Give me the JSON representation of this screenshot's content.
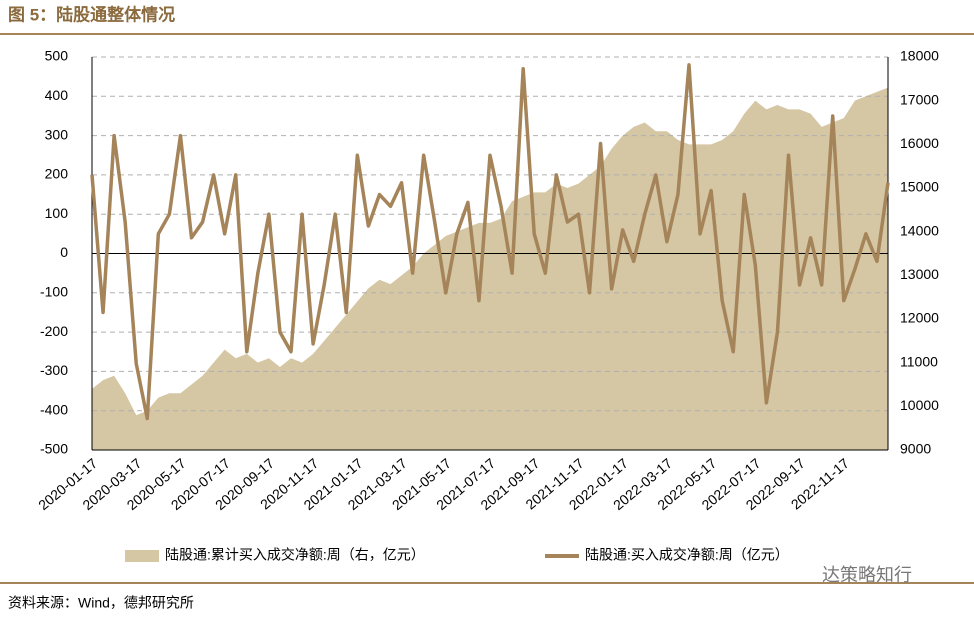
{
  "chart_data": {
    "type": "combo",
    "title": "图 5：陆股通整体情况",
    "source": "资料来源：Wind，德邦研究所",
    "watermark": "达策略知行",
    "categories": [
      "2020-01-17",
      null,
      null,
      null,
      "2020-03-17",
      null,
      null,
      null,
      "2020-05-17",
      null,
      null,
      null,
      "2020-07-17",
      null,
      null,
      null,
      "2020-09-17",
      null,
      null,
      null,
      "2020-11-17",
      null,
      null,
      null,
      "2021-01-17",
      null,
      null,
      null,
      "2021-03-17",
      null,
      null,
      null,
      "2021-05-17",
      null,
      null,
      null,
      "2021-07-17",
      null,
      null,
      null,
      "2021-09-17",
      null,
      null,
      null,
      "2021-11-17",
      null,
      null,
      null,
      "2022-01-17",
      null,
      null,
      null,
      "2022-03-17",
      null,
      null,
      null,
      "2022-05-17",
      null,
      null,
      null,
      "2022-07-17",
      null,
      null,
      null,
      "2022-09-17",
      null,
      null,
      null,
      "2022-11-17",
      null,
      null,
      null,
      null
    ],
    "series": [
      {
        "name": "陆股通:累计买入成交净额:周（右，亿元）",
        "kind": "area",
        "axis": "y2",
        "color": "#d5c6a4",
        "values": [
          10400,
          10600,
          10700,
          10300,
          9800,
          9900,
          10200,
          10300,
          10300,
          10500,
          10700,
          11000,
          11300,
          11100,
          11200,
          11000,
          11100,
          10900,
          11100,
          11000,
          11200,
          11500,
          11800,
          12100,
          12400,
          12700,
          12900,
          12800,
          13000,
          13200,
          13500,
          13700,
          13900,
          14000,
          14100,
          14200,
          14200,
          14300,
          14700,
          14800,
          14900,
          14900,
          15100,
          15000,
          15100,
          15300,
          15500,
          15900,
          16200,
          16400,
          16500,
          16300,
          16300,
          16100,
          16000,
          16000,
          16000,
          16100,
          16300,
          16700,
          17000,
          16800,
          16900,
          16800,
          16800,
          16700,
          16400,
          16500,
          16600,
          17000,
          17100,
          17200,
          17300
        ]
      },
      {
        "name": "陆股通:买入成交净额:周（亿元）",
        "kind": "line",
        "axis": "y",
        "color": "#a5845a",
        "values": [
          200,
          -150,
          300,
          80,
          -280,
          -420,
          50,
          100,
          300,
          40,
          80,
          200,
          50,
          200,
          -250,
          -50,
          100,
          -200,
          -250,
          100,
          -230,
          -80,
          100,
          -150,
          250,
          70,
          150,
          120,
          180,
          -50,
          250,
          80,
          -100,
          50,
          130,
          -120,
          250,
          120,
          -50,
          470,
          50,
          -50,
          200,
          80,
          100,
          -100,
          280,
          -90,
          60,
          -20,
          100,
          200,
          30,
          150,
          480,
          50,
          160,
          -120,
          -250,
          150,
          -30,
          -380,
          -200,
          250,
          -80,
          40,
          -80,
          350,
          -120,
          -40,
          50,
          -20,
          180
        ]
      }
    ],
    "ylim": [
      -500,
      500
    ],
    "yticks": [
      -500,
      -400,
      -300,
      -200,
      -100,
      0,
      100,
      200,
      300,
      400,
      500
    ],
    "y2lim": [
      9000,
      18000
    ],
    "y2ticks": [
      9000,
      10000,
      11000,
      12000,
      13000,
      14000,
      15000,
      16000,
      17000,
      18000
    ],
    "grid": true
  }
}
